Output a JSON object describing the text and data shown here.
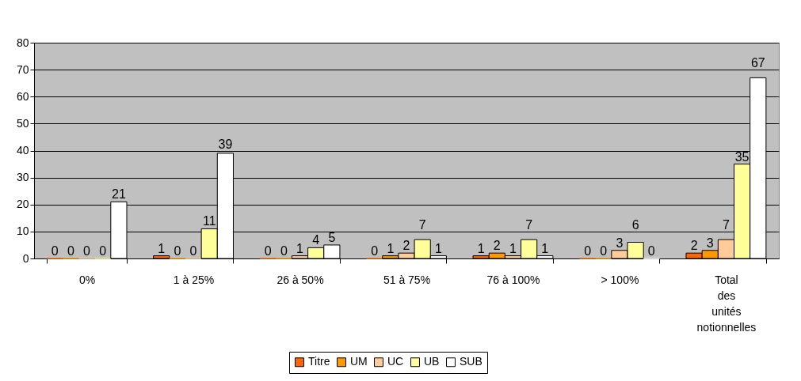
{
  "chart_data": {
    "type": "bar",
    "categories": [
      "0%",
      "1 à 25%",
      "26 à 50%",
      "51 à 75%",
      "76 à 100%",
      "> 100%",
      "Total des unités notionnelles"
    ],
    "series": [
      {
        "name": "Titre",
        "color": "#ff6600",
        "values": [
          0,
          1,
          0,
          0,
          1,
          0,
          2
        ]
      },
      {
        "name": "UM",
        "color": "#ff9900",
        "values": [
          0,
          0,
          0,
          1,
          2,
          0,
          3
        ]
      },
      {
        "name": "UC",
        "color": "#ffcc99",
        "values": [
          0,
          0,
          1,
          2,
          1,
          3,
          7
        ]
      },
      {
        "name": "UB",
        "color": "#ffff99",
        "values": [
          0,
          11,
          4,
          7,
          7,
          6,
          35
        ]
      },
      {
        "name": "SUB",
        "color": "#ffffff",
        "values": [
          21,
          39,
          5,
          1,
          1,
          0,
          67
        ]
      }
    ],
    "ylim": [
      0,
      80
    ],
    "yticks": [
      0,
      10,
      20,
      30,
      40,
      50,
      60,
      70,
      80
    ],
    "grid": "y",
    "legend": "bottom",
    "data_labels": true
  }
}
